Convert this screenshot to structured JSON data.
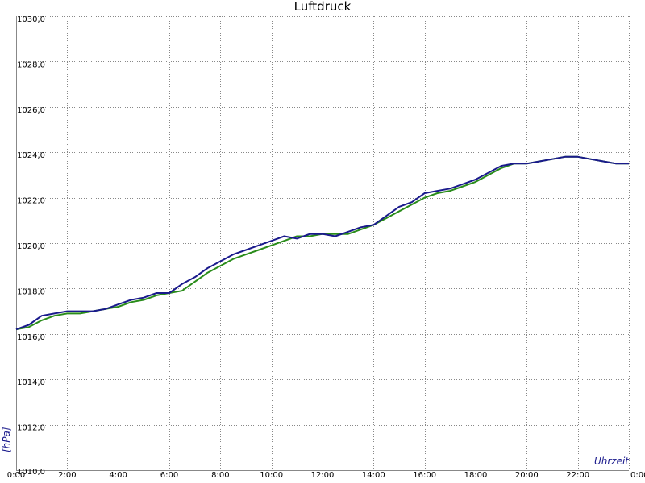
{
  "chart_data": {
    "type": "line",
    "title": "Luftdruck",
    "xlabel": "Uhrzeit",
    "ylabel": "[hPa]",
    "xlim": [
      0,
      24
    ],
    "ylim": [
      1010,
      1030
    ],
    "x_ticks": [
      0,
      2,
      4,
      6,
      8,
      10,
      12,
      14,
      16,
      18,
      20,
      22,
      24
    ],
    "x_tick_labels": [
      "0:00",
      "2:00",
      "4:00",
      "6:00",
      "8:00",
      "10:00",
      "12:00",
      "14:00",
      "16:00",
      "18:00",
      "20:00",
      "22:00",
      "0:00"
    ],
    "y_ticks": [
      1010,
      1012,
      1014,
      1016,
      1018,
      1020,
      1022,
      1024,
      1026,
      1028,
      1030
    ],
    "y_tick_labels": [
      "1010,0",
      "1012,0",
      "1014,0",
      "1016,0",
      "1018,0",
      "1020,0",
      "1022,0",
      "1024,0",
      "1026,0",
      "1028,0",
      "1030,0"
    ],
    "grid": true,
    "colors": {
      "grid": "#888888",
      "axis_label": "#1a1a8c"
    },
    "series": [
      {
        "color": "#1a1a8c",
        "x": [
          0,
          0.5,
          1,
          1.5,
          2,
          2.5,
          3,
          3.5,
          4,
          4.5,
          5,
          5.5,
          6,
          6.5,
          7,
          7.5,
          8,
          8.5,
          9,
          9.5,
          10,
          10.5,
          11,
          11.5,
          12,
          12.5,
          13,
          13.5,
          14,
          14.5,
          15,
          15.5,
          16,
          16.5,
          17,
          17.5,
          18,
          18.5,
          19,
          19.5,
          20,
          20.5,
          21,
          21.5,
          22,
          22.5,
          23,
          23.5,
          24
        ],
        "values": [
          1016.2,
          1016.4,
          1016.8,
          1016.9,
          1017.0,
          1017.0,
          1017.0,
          1017.1,
          1017.3,
          1017.5,
          1017.6,
          1017.8,
          1017.8,
          1018.2,
          1018.5,
          1018.9,
          1019.2,
          1019.5,
          1019.7,
          1019.9,
          1020.1,
          1020.3,
          1020.2,
          1020.4,
          1020.4,
          1020.3,
          1020.5,
          1020.7,
          1020.8,
          1021.2,
          1021.6,
          1021.8,
          1022.2,
          1022.3,
          1022.4,
          1022.6,
          1022.8,
          1023.1,
          1023.4,
          1023.5,
          1023.5,
          1023.6,
          1023.7,
          1023.8,
          1023.8,
          1023.7,
          1023.6,
          1023.5,
          1023.5
        ]
      },
      {
        "color": "#2a8c1a",
        "x": [
          0,
          0.5,
          1,
          1.5,
          2,
          2.5,
          3,
          3.5,
          4,
          4.5,
          5,
          5.5,
          6,
          6.5,
          7,
          7.5,
          8,
          8.5,
          9,
          9.5,
          10,
          10.5,
          11,
          11.5,
          12,
          12.5,
          13,
          13.5,
          14,
          14.5,
          15,
          15.5,
          16,
          16.5,
          17,
          17.5,
          18,
          18.5,
          19,
          19.5,
          20,
          20.5,
          21,
          21.5,
          22,
          22.5,
          23,
          23.5,
          24
        ],
        "values": [
          1016.2,
          1016.3,
          1016.6,
          1016.8,
          1016.9,
          1016.9,
          1017.0,
          1017.1,
          1017.2,
          1017.4,
          1017.5,
          1017.7,
          1017.8,
          1017.9,
          1018.3,
          1018.7,
          1019.0,
          1019.3,
          1019.5,
          1019.7,
          1019.9,
          1020.1,
          1020.3,
          1020.3,
          1020.4,
          1020.4,
          1020.4,
          1020.6,
          1020.8,
          1021.1,
          1021.4,
          1021.7,
          1022.0,
          1022.2,
          1022.3,
          1022.5,
          1022.7,
          1023.0,
          1023.3,
          1023.5,
          1023.5,
          1023.6,
          1023.7,
          1023.8,
          1023.8,
          1023.7,
          1023.6,
          1023.5,
          1023.5
        ]
      }
    ]
  }
}
